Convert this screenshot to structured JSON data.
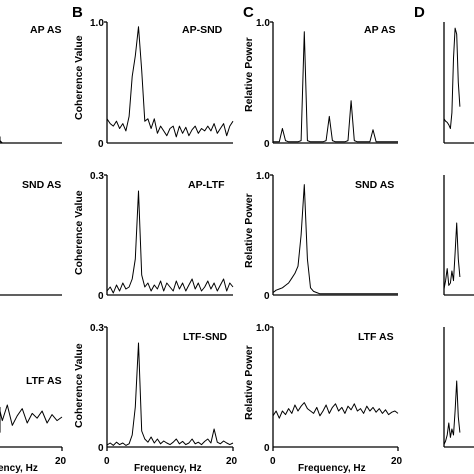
{
  "figure": {
    "panel_letters": [
      "B",
      "C",
      "D"
    ],
    "x_axis_label_full": "Frequency, Hz",
    "x_axis_label_cropped": "ency, Hz"
  },
  "chart_data": [
    {
      "type": "line",
      "column": "A",
      "row": 0,
      "title": "AP AS",
      "ylabel": "",
      "xlim": [
        0,
        20
      ],
      "ylim": [
        0,
        1.0
      ],
      "yticks": [],
      "xticks": [],
      "grid": false,
      "x": [
        0,
        1,
        2,
        3,
        4,
        5,
        6,
        7,
        8,
        9,
        10,
        11,
        12,
        13,
        14,
        15,
        16,
        17,
        18,
        19,
        20
      ],
      "values": [
        0,
        0,
        0,
        0,
        0,
        0.01,
        0.01,
        0.02,
        0.05,
        0.01,
        0.0,
        0.0,
        0.0,
        0.02,
        0.0,
        0.0,
        0,
        0,
        0,
        0,
        0
      ]
    },
    {
      "type": "line",
      "column": "A",
      "row": 1,
      "title": "SND AS",
      "ylabel": "",
      "xlim": [
        0,
        20
      ],
      "ylim": [
        0,
        1.0
      ],
      "yticks": [],
      "xticks": [],
      "grid": false,
      "x": [],
      "values": []
    },
    {
      "type": "line",
      "column": "A",
      "row": 2,
      "title": "LTF AS",
      "ylabel": "",
      "xlim": [
        0,
        20
      ],
      "ylim": [
        0,
        1.0
      ],
      "yticks": [],
      "xticks": [
        "20"
      ],
      "grid": false,
      "x": [
        8.5,
        9,
        9.5,
        10,
        10.5,
        11,
        11.5,
        12,
        12.5,
        13,
        13.5,
        14,
        14.5,
        15,
        15.5,
        16,
        16.5,
        17,
        17.5,
        18,
        18.5,
        19,
        19.5,
        20
      ],
      "values": [
        0.12,
        0.25,
        0.22,
        0.3,
        0.18,
        0.28,
        0.2,
        0.33,
        0.25,
        0.15,
        0.3,
        0.22,
        0.35,
        0.18,
        0.26,
        0.32,
        0.2,
        0.28,
        0.24,
        0.3,
        0.2,
        0.27,
        0.22,
        0.25
      ]
    },
    {
      "type": "line",
      "column": "B",
      "row": 0,
      "title": "AP-SND",
      "ylabel": "Coherence Value",
      "xlim": [
        0,
        20
      ],
      "ylim": [
        0,
        1.0
      ],
      "yticks": [
        "0",
        "1.0"
      ],
      "xticks": [],
      "grid": false,
      "x": [
        0,
        0.5,
        1,
        1.5,
        2,
        2.5,
        3,
        3.5,
        4,
        4.5,
        5,
        5.5,
        6,
        6.5,
        7,
        7.5,
        8,
        8.5,
        9,
        9.5,
        10,
        10.5,
        11,
        11.5,
        12,
        12.5,
        13,
        13.5,
        14,
        14.5,
        15,
        15.5,
        16,
        16.5,
        17,
        17.5,
        18,
        18.5,
        19,
        19.5,
        20
      ],
      "values": [
        0.2,
        0.16,
        0.14,
        0.18,
        0.12,
        0.16,
        0.1,
        0.22,
        0.55,
        0.72,
        0.96,
        0.6,
        0.18,
        0.2,
        0.12,
        0.2,
        0.08,
        0.14,
        0.1,
        0.06,
        0.12,
        0.14,
        0.05,
        0.14,
        0.08,
        0.13,
        0.06,
        0.11,
        0.14,
        0.08,
        0.12,
        0.1,
        0.14,
        0.1,
        0.16,
        0.08,
        0.12,
        0.16,
        0.06,
        0.14,
        0.18
      ]
    },
    {
      "type": "line",
      "column": "B",
      "row": 1,
      "title": "AP-LTF",
      "ylabel": "Coherence Value",
      "xlim": [
        0,
        20
      ],
      "ylim": [
        0,
        0.3
      ],
      "yticks": [
        "0",
        "0.3"
      ],
      "xticks": [],
      "grid": false,
      "x": [
        0,
        0.5,
        1,
        1.5,
        2,
        2.5,
        3,
        3.5,
        4,
        4.5,
        5,
        5.5,
        6,
        6.5,
        7,
        7.5,
        8,
        8.5,
        9,
        9.5,
        10,
        10.5,
        11,
        11.5,
        12,
        12.5,
        13,
        13.5,
        14,
        14.5,
        15,
        15.5,
        16,
        16.5,
        17,
        17.5,
        18,
        18.5,
        19,
        19.5,
        20
      ],
      "values": [
        0.01,
        0.02,
        0.005,
        0.025,
        0.01,
        0.03,
        0.015,
        0.02,
        0.04,
        0.09,
        0.26,
        0.05,
        0.02,
        0.03,
        0.01,
        0.025,
        0.015,
        0.035,
        0.01,
        0.03,
        0.02,
        0.01,
        0.035,
        0.015,
        0.03,
        0.01,
        0.025,
        0.04,
        0.015,
        0.03,
        0.01,
        0.02,
        0.035,
        0.015,
        0.03,
        0.01,
        0.025,
        0.04,
        0.01,
        0.03,
        0.02
      ]
    },
    {
      "type": "line",
      "column": "B",
      "row": 2,
      "title": "LTF-SND",
      "ylabel": "Coherence Value",
      "xlim": [
        0,
        20
      ],
      "ylim": [
        0,
        0.3
      ],
      "yticks": [
        "0",
        "0.3"
      ],
      "xticks": [
        "0",
        "20"
      ],
      "xlabel": "Frequency, Hz",
      "grid": false,
      "x": [
        0,
        0.5,
        1,
        1.5,
        2,
        2.5,
        3,
        3.5,
        4,
        4.5,
        5,
        5.5,
        6,
        6.5,
        7,
        7.5,
        8,
        8.5,
        9,
        9.5,
        10,
        10.5,
        11,
        11.5,
        12,
        12.5,
        13,
        13.5,
        14,
        14.5,
        15,
        15.5,
        16,
        16.5,
        17,
        17.5,
        18,
        18.5,
        19,
        19.5,
        20
      ],
      "values": [
        0.005,
        0.01,
        0.004,
        0.012,
        0.006,
        0.01,
        0.004,
        0.008,
        0.03,
        0.1,
        0.26,
        0.04,
        0.02,
        0.012,
        0.025,
        0.01,
        0.02,
        0.008,
        0.015,
        0.01,
        0.006,
        0.012,
        0.02,
        0.008,
        0.014,
        0.006,
        0.01,
        0.02,
        0.008,
        0.012,
        0.006,
        0.014,
        0.02,
        0.01,
        0.045,
        0.012,
        0.008,
        0.015,
        0.01,
        0.006,
        0.01
      ]
    },
    {
      "type": "line",
      "column": "C",
      "row": 0,
      "title": "AP AS",
      "ylabel": "Relative Power",
      "xlim": [
        0,
        20
      ],
      "ylim": [
        0,
        1.0
      ],
      "yticks": [
        "0",
        "1.0"
      ],
      "xticks": [],
      "grid": false,
      "x": [
        0,
        0.5,
        1,
        1.5,
        2,
        2.5,
        3,
        3.5,
        4,
        4.5,
        5,
        5.5,
        6,
        6.5,
        7,
        7.5,
        8,
        8.5,
        9,
        9.5,
        10,
        10.5,
        11,
        11.5,
        12,
        12.5,
        13,
        13.5,
        14,
        14.5,
        15,
        15.5,
        16,
        16.5,
        17,
        17.5,
        18,
        18.5,
        19,
        19.5,
        20
      ],
      "values": [
        0.01,
        0.01,
        0.01,
        0.12,
        0.02,
        0.01,
        0.01,
        0.01,
        0.01,
        0.02,
        0.92,
        0.02,
        0.01,
        0.01,
        0.01,
        0.01,
        0.01,
        0.02,
        0.22,
        0.02,
        0.01,
        0.01,
        0.01,
        0.01,
        0.02,
        0.35,
        0.02,
        0.01,
        0.01,
        0.01,
        0.01,
        0.01,
        0.11,
        0.01,
        0.01,
        0.01,
        0.01,
        0.01,
        0.01,
        0.01,
        0.01
      ]
    },
    {
      "type": "line",
      "column": "C",
      "row": 1,
      "title": "SND AS",
      "ylabel": "Relative Power",
      "xlim": [
        0,
        20
      ],
      "ylim": [
        0,
        1.0
      ],
      "yticks": [
        "0",
        "1.0"
      ],
      "xticks": [],
      "grid": false,
      "x": [
        0,
        0.5,
        1,
        1.5,
        2,
        2.5,
        3,
        3.5,
        4,
        4.5,
        5,
        5.5,
        6,
        6.5,
        7,
        7.5,
        8,
        8.5,
        9,
        9.5,
        10,
        10.5,
        11,
        11.5,
        12,
        12.5,
        13,
        13.5,
        14,
        14.5,
        15,
        15.5,
        16,
        16.5,
        17,
        17.5,
        18,
        18.5,
        19,
        19.5,
        20
      ],
      "values": [
        0.02,
        0.04,
        0.05,
        0.06,
        0.08,
        0.1,
        0.14,
        0.18,
        0.24,
        0.5,
        0.92,
        0.3,
        0.06,
        0.03,
        0.02,
        0.01,
        0.01,
        0.01,
        0.01,
        0.01,
        0.01,
        0.01,
        0.01,
        0.01,
        0.01,
        0.01,
        0.01,
        0.01,
        0.01,
        0.01,
        0.01,
        0.01,
        0.01,
        0.01,
        0.01,
        0.01,
        0.01,
        0.01,
        0.01,
        0.01,
        0.01
      ]
    },
    {
      "type": "line",
      "column": "C",
      "row": 2,
      "title": "LTF AS",
      "ylabel": "Relative Power",
      "xlim": [
        0,
        20
      ],
      "ylim": [
        0,
        1.0
      ],
      "yticks": [
        "0",
        "1.0"
      ],
      "xticks": [
        "0",
        "20"
      ],
      "xlabel": "Frequency, Hz",
      "grid": false,
      "x": [
        0,
        0.5,
        1,
        1.5,
        2,
        2.5,
        3,
        3.5,
        4,
        4.5,
        5,
        5.5,
        6,
        6.5,
        7,
        7.5,
        8,
        8.5,
        9,
        9.5,
        10,
        10.5,
        11,
        11.5,
        12,
        12.5,
        13,
        13.5,
        14,
        14.5,
        15,
        15.5,
        16,
        16.5,
        17,
        17.5,
        18,
        18.5,
        19,
        19.5,
        20
      ],
      "values": [
        0.26,
        0.3,
        0.24,
        0.3,
        0.27,
        0.32,
        0.28,
        0.35,
        0.3,
        0.34,
        0.37,
        0.32,
        0.3,
        0.28,
        0.33,
        0.26,
        0.3,
        0.35,
        0.28,
        0.33,
        0.36,
        0.3,
        0.33,
        0.28,
        0.34,
        0.31,
        0.36,
        0.3,
        0.32,
        0.28,
        0.34,
        0.3,
        0.33,
        0.29,
        0.32,
        0.28,
        0.31,
        0.27,
        0.29,
        0.3,
        0.28
      ]
    },
    {
      "type": "line",
      "column": "D",
      "row": 0,
      "title": "",
      "ylabel": "",
      "xlim": [
        0,
        20
      ],
      "ylim": [
        0,
        1.0
      ],
      "yticks": [],
      "xticks": [],
      "grid": false,
      "x": [
        0,
        0.25,
        0.5,
        0.75,
        1,
        1.25,
        1.5,
        1.75,
        2,
        2.25,
        2.5
      ],
      "values": [
        0.2,
        0.18,
        0.17,
        0.15,
        0.12,
        0.25,
        0.7,
        0.95,
        0.9,
        0.5,
        0.3
      ]
    },
    {
      "type": "line",
      "column": "D",
      "row": 1,
      "title": "",
      "ylabel": "",
      "xlim": [
        0,
        20
      ],
      "ylim": [
        0,
        1.0
      ],
      "yticks": [],
      "xticks": [],
      "grid": false,
      "x": [
        0,
        0.25,
        0.5,
        0.75,
        1,
        1.25,
        1.5,
        1.75,
        2,
        2.25,
        2.5
      ],
      "values": [
        0.05,
        0.12,
        0.22,
        0.08,
        0.1,
        0.2,
        0.12,
        0.35,
        0.6,
        0.3,
        0.15
      ]
    },
    {
      "type": "line",
      "column": "D",
      "row": 2,
      "title": "",
      "ylabel": "",
      "xlim": [
        0,
        20
      ],
      "ylim": [
        0,
        1.0
      ],
      "yticks": [],
      "xticks": [],
      "grid": false,
      "x": [
        0,
        0.25,
        0.5,
        0.75,
        1,
        1.25,
        1.5,
        1.75,
        2,
        2.25,
        2.5
      ],
      "values": [
        0.02,
        0.05,
        0.1,
        0.2,
        0.08,
        0.15,
        0.1,
        0.3,
        0.55,
        0.25,
        0.12
      ]
    }
  ]
}
